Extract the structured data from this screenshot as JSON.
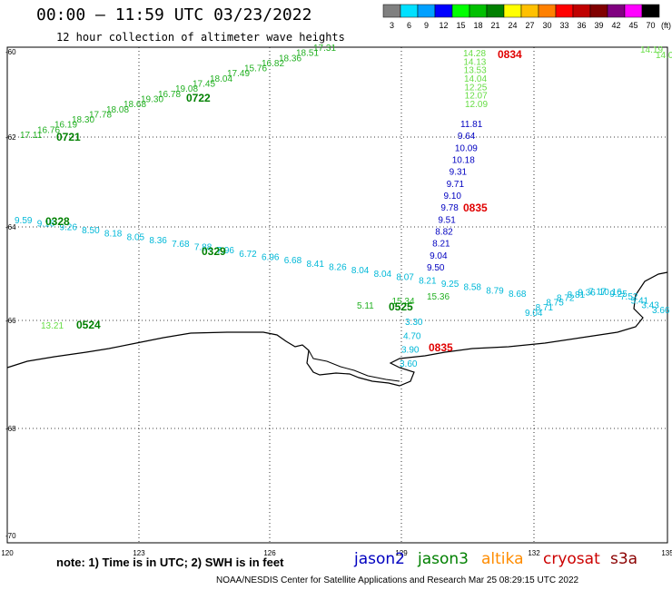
{
  "header": {
    "title": "00:00 – 11:59 UTC 03/23/2022",
    "subtitle": "12 hour collection of altimeter wave heights"
  },
  "colorbar": {
    "unit_label": "(ft)",
    "ticks": [
      "3",
      "6",
      "9",
      "12",
      "15",
      "18",
      "21",
      "24",
      "27",
      "30",
      "33",
      "36",
      "39",
      "42",
      "45",
      "70"
    ],
    "colors": [
      "#808080",
      "#00e0ff",
      "#00a0ff",
      "#0000ff",
      "#00ff00",
      "#00c000",
      "#008000",
      "#ffff00",
      "#ffc000",
      "#ff8000",
      "#ff0000",
      "#c00000",
      "#800000",
      "#800080",
      "#ff00ff",
      "#000000"
    ]
  },
  "map": {
    "lat_labels": [
      "-60",
      "-62",
      "-64",
      "-66",
      "-68",
      "-70"
    ],
    "lon_labels": [
      "120",
      "123",
      "126",
      "129",
      "132",
      "135"
    ],
    "coastline_color": "#000000",
    "grid_style": "dotted"
  },
  "satellites": {
    "jason2": {
      "name": "jason2",
      "color": "#0000c0"
    },
    "jason3": {
      "name": "jason3",
      "color": "#008000"
    },
    "altika": {
      "name": "altika",
      "color": "#ff8c00"
    },
    "cryosat": {
      "name": "cryosat",
      "color": "#cc0000"
    },
    "s3a": {
      "name": "s3a",
      "color": "#8b0000"
    }
  },
  "tracks": [
    {
      "id": "track-0722",
      "pass_label": "0722",
      "pass_color": "#008000",
      "value_color": "#22b022",
      "values": [
        "17.11",
        "16.76",
        "16.19",
        "18.30",
        "17.78",
        "18.08",
        "18.68",
        "19.30",
        "16.78",
        "19.08",
        "17.45",
        "18.04",
        "17.49",
        "15.76",
        "16.82",
        "18.36",
        "18.51",
        "17.31"
      ],
      "pass_labels_extra": [
        "0721"
      ]
    },
    {
      "id": "track-0329",
      "pass_label": "0329",
      "pass_color": "#008000",
      "value_color": "#00b8d8",
      "values": [
        "9.59",
        "9.16",
        "9.26",
        "8.50",
        "8.18",
        "8.05",
        "8.36",
        "7.68",
        "7.88",
        "7.96",
        "6.72",
        "6.96",
        "6.68",
        "8.41",
        "8.26",
        "8.04",
        "8.04",
        "8.07",
        "8.21",
        "9.25",
        "8.58",
        "8.79",
        "8.68"
      ],
      "pass_labels_extra": [
        "0328"
      ]
    },
    {
      "id": "track-0835",
      "pass_label": "0835",
      "pass_color": "#e00000",
      "value_color": "#0000c0",
      "values": [
        "11.81",
        "9.64",
        "10.09",
        "10.18",
        "9.31",
        "9.71",
        "9.10",
        "9.78",
        "9.51",
        "8.82",
        "8.21",
        "9.04",
        "9.50"
      ]
    },
    {
      "id": "track-0834",
      "pass_label": "0834",
      "pass_color": "#e00000",
      "value_color": "#66dd44",
      "values": [
        "14.28",
        "14.13",
        "13.53",
        "14.04",
        "12.25",
        "12.07",
        "12.09"
      ]
    },
    {
      "id": "track-east",
      "pass_label": "",
      "pass_color": "#e00000",
      "value_color": "#00b8d8",
      "values": [
        "9.04",
        "8.71",
        "8.75",
        "8.72",
        "8.81",
        "9.36",
        "7.17",
        "10.16",
        "9.25",
        "7.52",
        "5.41",
        "3.43",
        "3.66"
      ]
    },
    {
      "id": "track-0525",
      "pass_label": "0525",
      "pass_color": "#008000",
      "value_color": "#22b022",
      "values": [
        "5.11",
        "15.34",
        "15.36"
      ]
    },
    {
      "id": "track-0524",
      "pass_label": "0524",
      "pass_color": "#008000",
      "value_color": "#66dd44",
      "values": [
        "13.21"
      ]
    },
    {
      "id": "track-coast",
      "pass_label": "0835",
      "pass_color": "#e00000",
      "value_color": "#00b8d8",
      "values": [
        "3.30",
        "4.70",
        "3.90",
        "3.60"
      ]
    },
    {
      "id": "track-right-top",
      "pass_label": "",
      "pass_color": "#e00000",
      "value_color": "#66dd44",
      "values": [
        "14.19",
        "14.0"
      ]
    }
  ],
  "footer": {
    "note": "note:  1) Time is in UTC; 2) SWH is in feet",
    "credit": "NOAA/NESDIS Center for Satellite Applications and Research    Mar 25 08:29:15 UTC 2022"
  }
}
